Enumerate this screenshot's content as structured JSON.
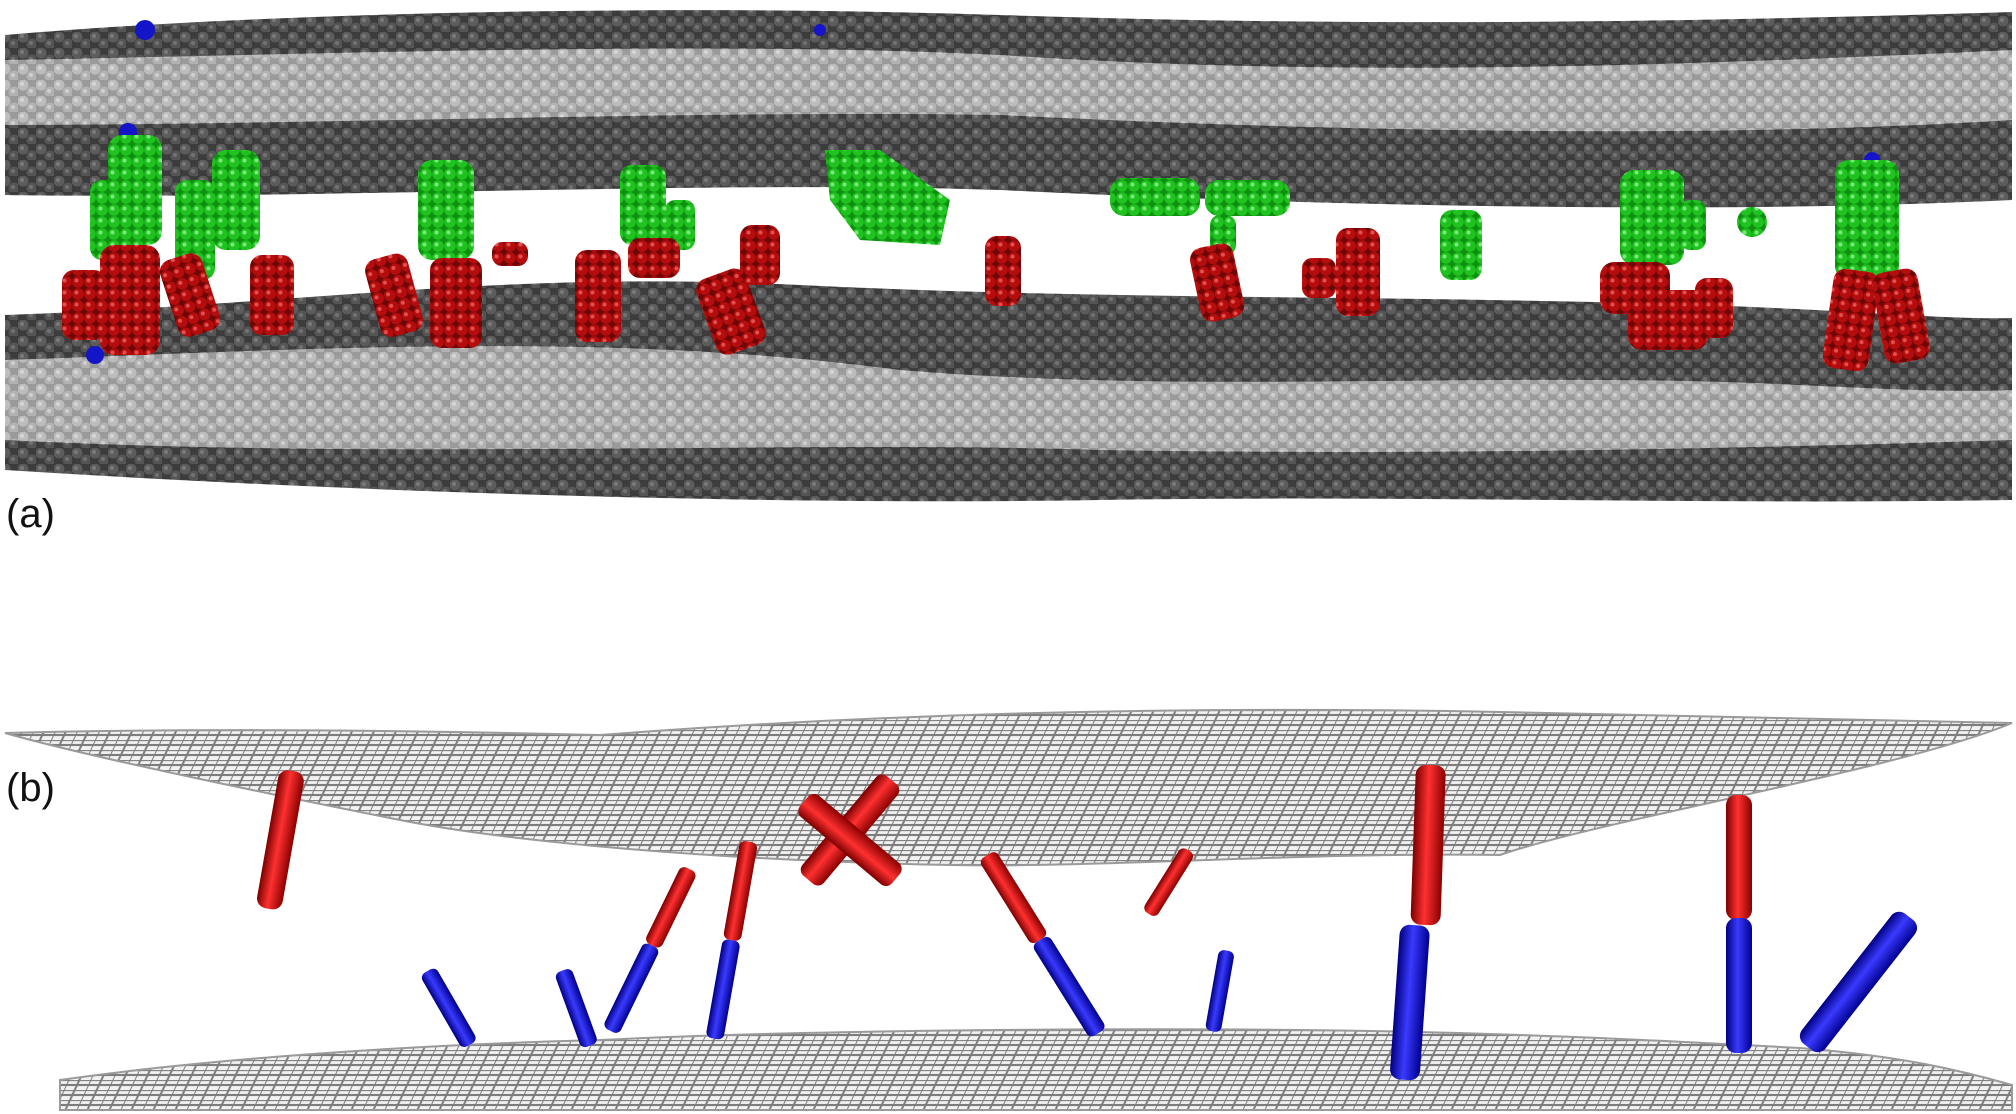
{
  "figure": {
    "panel_a": {
      "label": "(a)"
    },
    "panel_b": {
      "label": "(b)"
    }
  },
  "colors": {
    "background": "#ffffff",
    "lipid_dark": "#4a4a4a",
    "lipid_light": "#b4b4b4",
    "segment_green": "#1fc21f",
    "segment_red": "#b50d0d",
    "segment_blue": "#1414c8",
    "mesh": "#8c8c8c"
  }
}
